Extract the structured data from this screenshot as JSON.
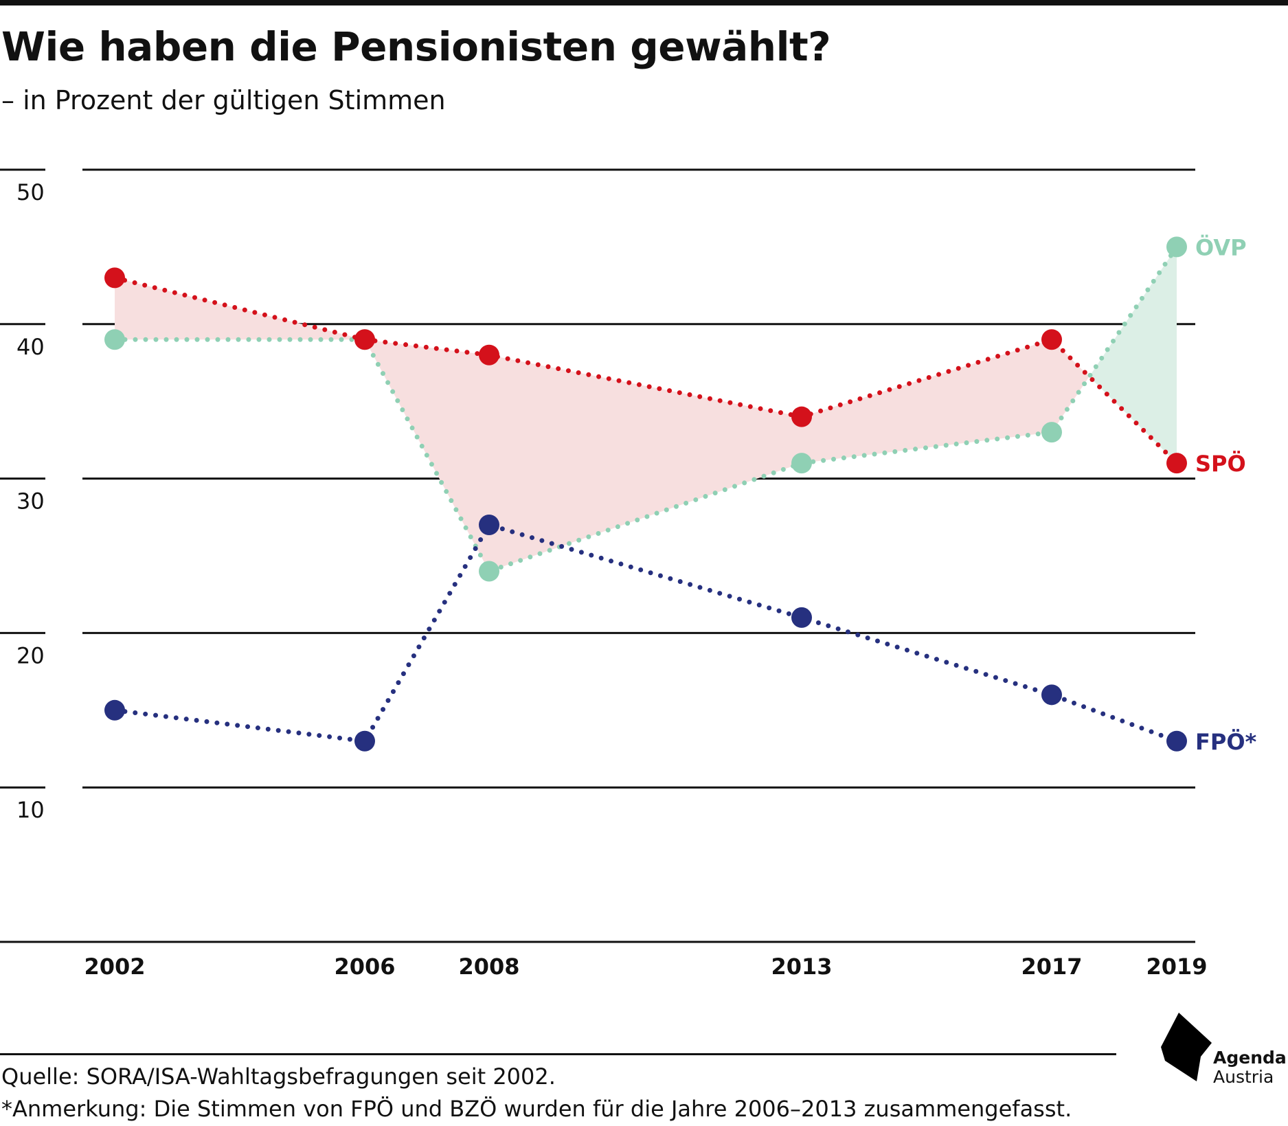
{
  "title": "Wie haben die Pensionisten gewählt?",
  "subtitle": "– in Prozent der gültigen Stimmen",
  "source": "Quelle: SORA/ISA-Wahltagsbefragungen seit 2002.",
  "note": "*Anmerkung: Die Stimmen von FPÖ und BZÖ wurden für die Jahre 2006–2013 zusammengefasst.",
  "logo": {
    "line1": "Agenda",
    "line2": "Austria"
  },
  "colors": {
    "spo": "#d4111b",
    "ovp": "#8fd0b4",
    "fpo": "#26307f",
    "spo_lead_fill": "#f7dfdf",
    "ovp_lead_fill": "#dcefe6",
    "grid": "#111111"
  },
  "chart_data": {
    "type": "line",
    "title": "Wie haben die Pensionisten gewählt?",
    "subtitle": "– in Prozent der gültigen Stimmen",
    "x": [
      2002,
      2006,
      2008,
      2013,
      2017,
      2019
    ],
    "ylim": [
      0,
      50
    ],
    "yticks": [
      10,
      20,
      30,
      40,
      50
    ],
    "grid": true,
    "line_style": "dotted",
    "series": [
      {
        "name": "ÖVP",
        "key": "ovp",
        "values": [
          39,
          39,
          24,
          31,
          33,
          45
        ]
      },
      {
        "name": "SPÖ",
        "key": "spo",
        "values": [
          43,
          39,
          38,
          34,
          39,
          31
        ]
      },
      {
        "name": "FPÖ*",
        "key": "fpo",
        "values": [
          15,
          13,
          27,
          21,
          16,
          13
        ]
      }
    ]
  }
}
